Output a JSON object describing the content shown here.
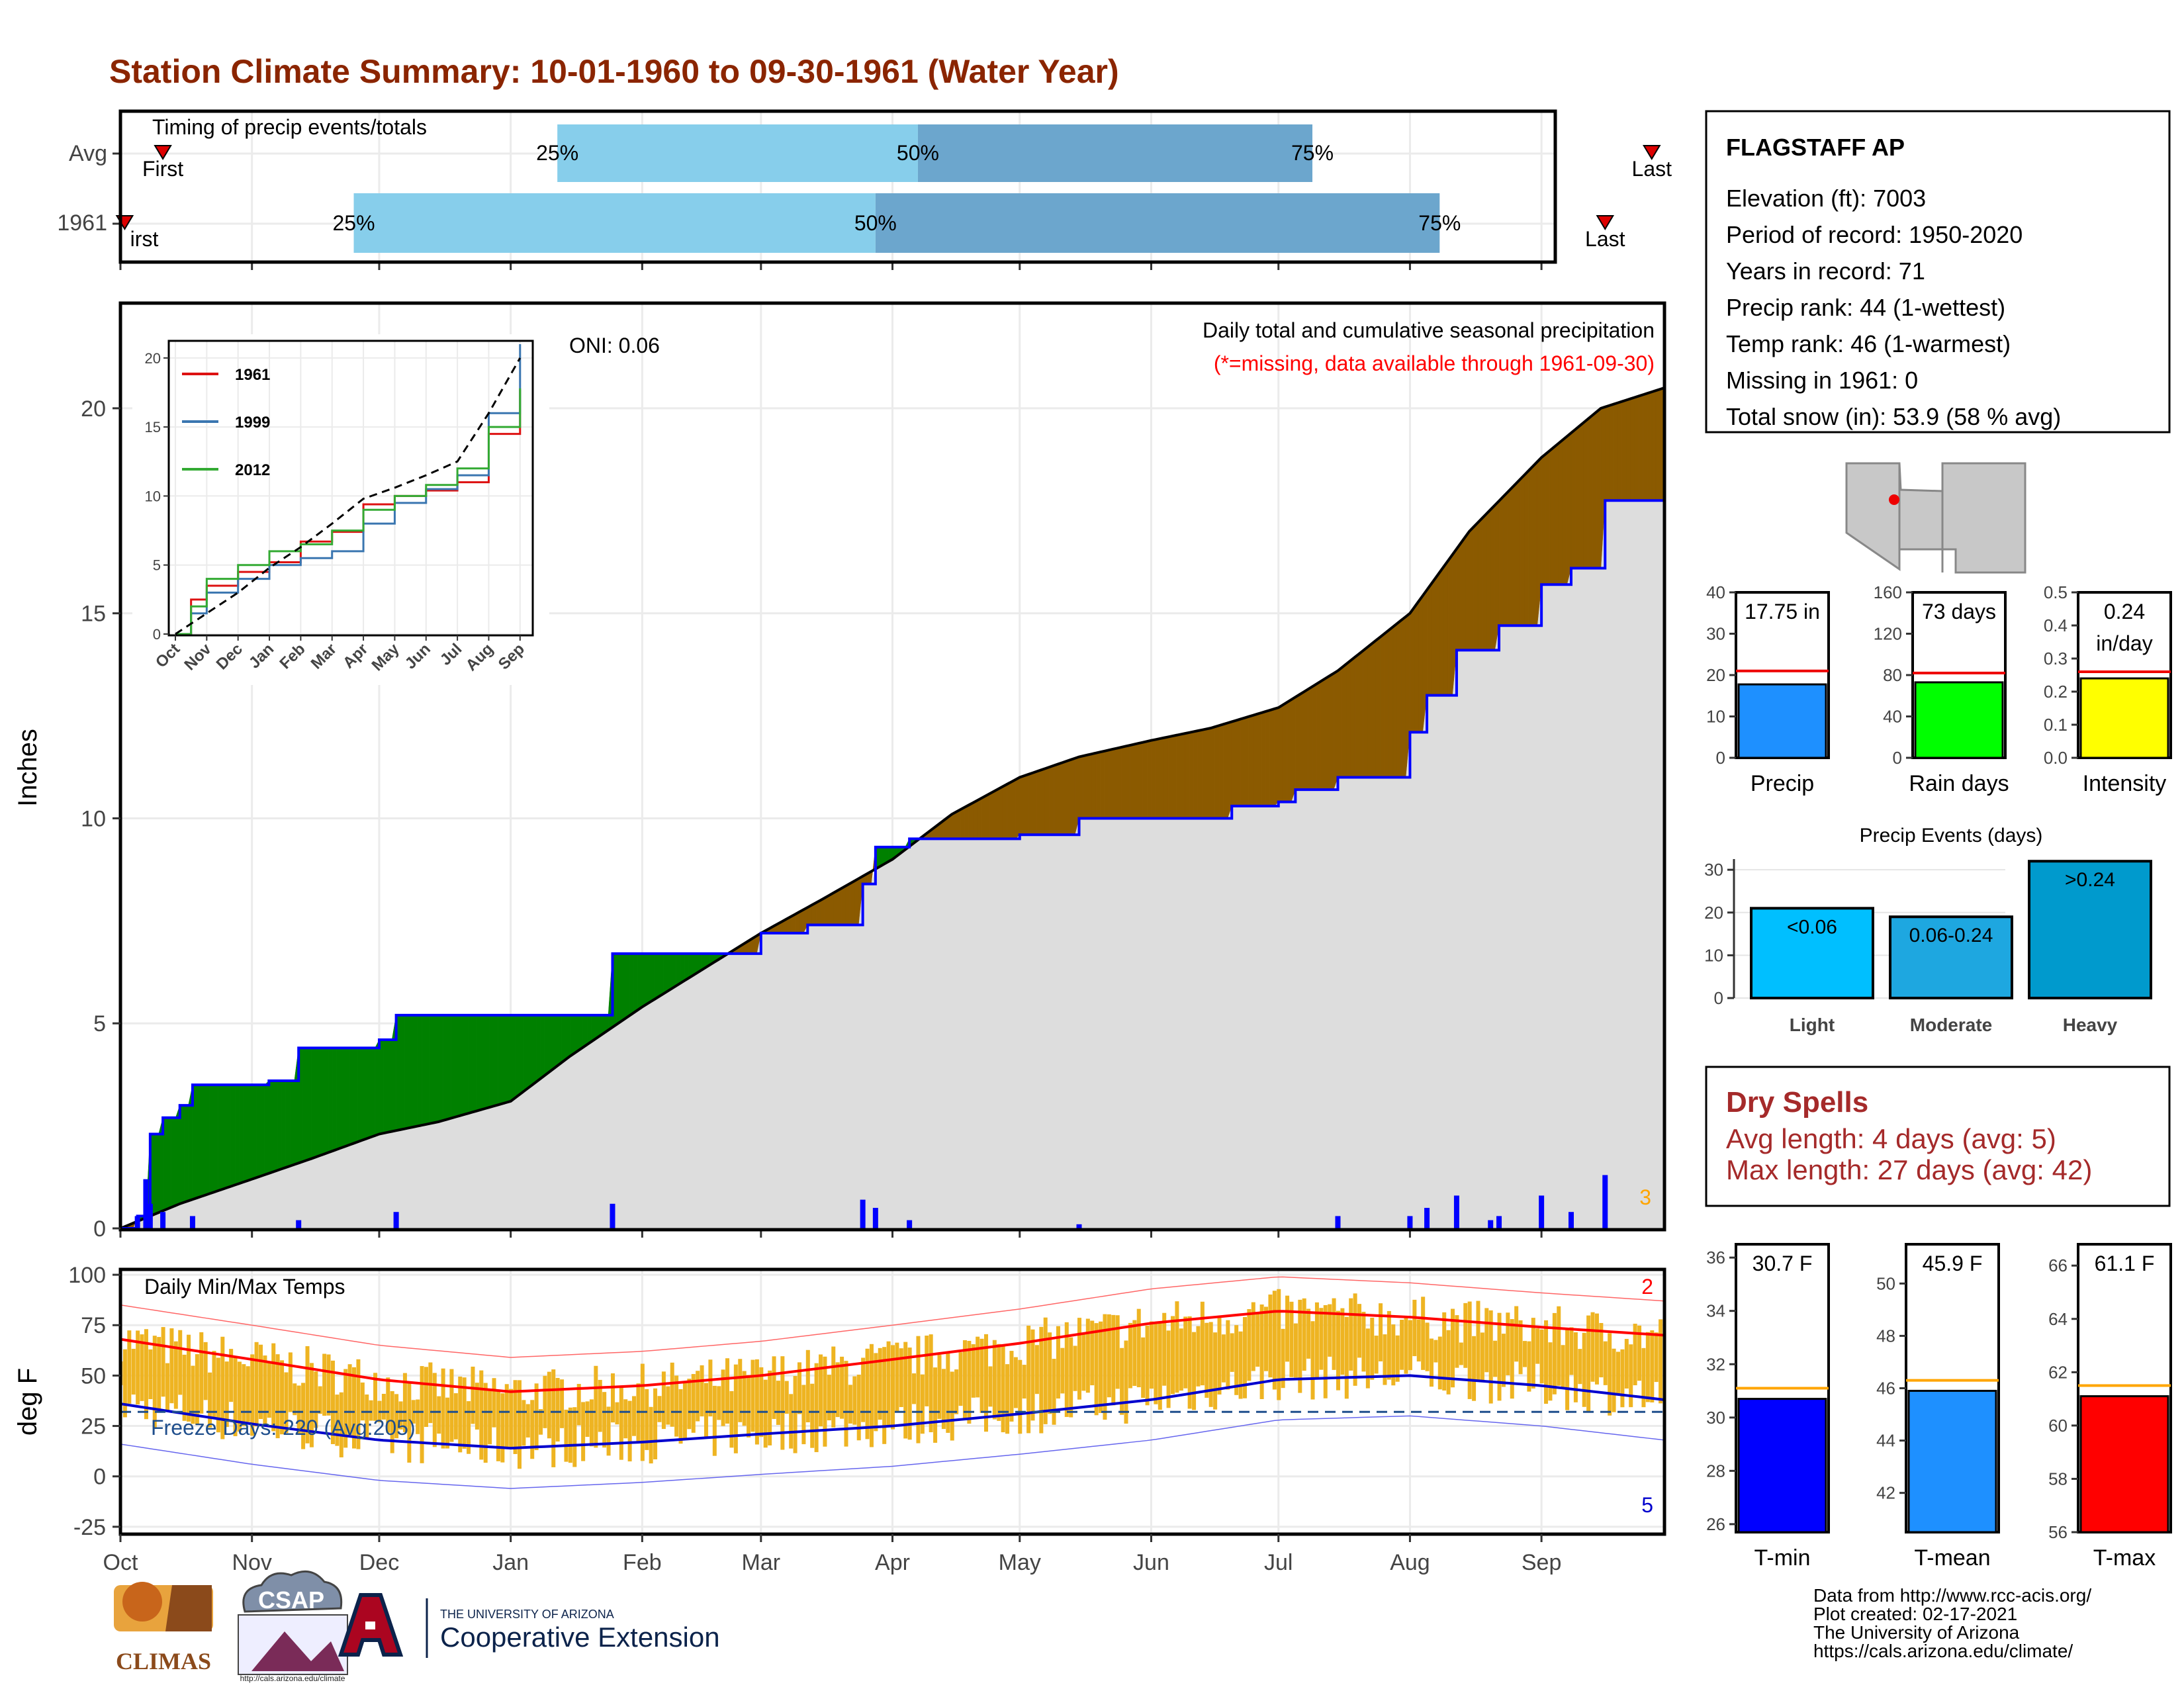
{
  "title": "Station Climate Summary: 10-01-1960 to 09-30-1961 (Water Year)",
  "timing": {
    "heading": "Timing of precip events/totals",
    "rows": [
      {
        "label": "Avg",
        "first_label": "First",
        "last_label": "Last",
        "first_date": "1960-10-11",
        "p25_date": "1961-01-12",
        "p50_date": "1961-04-07",
        "p75_date": "1961-07-09",
        "last_date": "1961-09-27"
      },
      {
        "label": "1961",
        "first_label": "irst",
        "last_label": "Last",
        "first_date": "1960-10-02",
        "p25_date": "1960-11-25",
        "p50_date": "1961-03-28",
        "p75_date": "1961-08-08",
        "last_date": "1961-09-16"
      }
    ],
    "pct_labels": [
      "25%",
      "50%",
      "75%"
    ],
    "colors": {
      "light": "#87CEEB",
      "dark": "#6CA6CD",
      "marker": "#DD0000"
    }
  },
  "precip_panel": {
    "ylabel": "Inches",
    "oni": "ONI: 0.06",
    "title": "Daily total and cumulative seasonal precipitation",
    "subtitle": "(*=missing, data available through 1961-09-30)",
    "corner_count": "3",
    "colors": {
      "deficit": "#008000",
      "surplus": "#8B5A00",
      "normal_fill": "#DDDDDD",
      "obs_line": "#0000FF",
      "avg_line": "#000000",
      "subtitle": "#FF0000",
      "count": "#FFA500"
    }
  },
  "inset": {
    "xticks": [
      "Oct",
      "Nov",
      "Dec",
      "Jan",
      "Feb",
      "Mar",
      "Apr",
      "May",
      "Jun",
      "Jul",
      "Aug",
      "Sep"
    ],
    "yticks": [
      "0",
      "5",
      "10",
      "15",
      "20"
    ],
    "legend": [
      {
        "name": "1961",
        "color": "#DD1111"
      },
      {
        "name": "1999",
        "color": "#3A76B0"
      },
      {
        "name": "2012",
        "color": "#33AA33"
      }
    ]
  },
  "temp_panel": {
    "ylabel": "deg F",
    "heading": "Daily Min/Max Temps",
    "freeze": "Freeze Days: 220 (Avg:205)",
    "count_hi": "2",
    "count_lo": "5",
    "colors": {
      "bars": "#EEB422",
      "max_norm": "#FF0000",
      "min_norm": "#0000CD",
      "freeze_line": "#1F4E8C"
    }
  },
  "station": {
    "name": "FLAGSTAFF AP",
    "lines": [
      "Elevation (ft): 7003",
      "Period of record: 1950-2020",
      "Years in record: 71",
      "Precip rank: 44 (1-wettest)",
      "Temp rank: 46 (1-warmest)",
      "Missing in 1961: 0",
      "Total snow (in): 53.9 (58 % avg)"
    ]
  },
  "precip_summary": [
    {
      "label": "Precip",
      "value_text": "17.75 in",
      "yticks": [
        "0",
        "10",
        "20",
        "30",
        "40"
      ],
      "color": "#1E90FF"
    },
    {
      "label": "Rain days",
      "value_text": "73 days",
      "yticks": [
        "0",
        "40",
        "80",
        "120",
        "160"
      ],
      "color": "#00FF00"
    },
    {
      "label": "Intensity",
      "value_text": "0.24 in/day",
      "yticks": [
        "0.0",
        "0.1",
        "0.2",
        "0.3",
        "0.4",
        "0.5"
      ],
      "color": "#FFFF00"
    }
  ],
  "events": {
    "title": "Precip Events (days)",
    "yticks": [
      "0",
      "10",
      "20",
      "30"
    ],
    "bars": [
      {
        "label": "Light",
        "bar_text": "<0.06",
        "color": "#00BFFF"
      },
      {
        "label": "Moderate",
        "bar_text": "0.06-0.24",
        "color": "#1EA7E0"
      },
      {
        "label": "Heavy",
        "bar_text": ">0.24",
        "color": "#009ACD"
      }
    ]
  },
  "dry_spells": {
    "title": "Dry Spells",
    "lines": [
      "Avg length: 4 days (avg: 5)",
      "Max length: 27 days (avg: 42)"
    ],
    "color": "#A52A2A"
  },
  "temp_summary": [
    {
      "label": "T-min",
      "value_text": "30.7 F",
      "yticks": [
        "26",
        "28",
        "30",
        "32",
        "34",
        "36"
      ],
      "color": "#0000FF"
    },
    {
      "label": "T-mean",
      "value_text": "45.9 F",
      "yticks": [
        "42",
        "44",
        "46",
        "48",
        "50"
      ],
      "color": "#1E90FF"
    },
    {
      "label": "T-max",
      "value_text": "61.1 F",
      "yticks": [
        "56",
        "58",
        "60",
        "62",
        "64",
        "66"
      ],
      "color": "#FF0000"
    }
  ],
  "credits": [
    "Data from http://www.rcc-acis.org/",
    "Plot created: 02-17-2021",
    "The University of Arizona",
    "https://cals.arizona.edu/climate/"
  ],
  "logos": {
    "climas": "CLIMAS",
    "csap": "CSAP",
    "csap_url": "http://cals.arizona.edu/climate",
    "ua_small": "THE UNIVERSITY OF ARIZONA",
    "ua_big": "Cooperative Extension"
  },
  "chart_data": {
    "type": "area",
    "x_axis": {
      "label": "",
      "ticks": [
        "Oct",
        "Nov",
        "Dec",
        "Jan",
        "Feb",
        "Mar",
        "Apr",
        "May",
        "Jun",
        "Jul",
        "Aug",
        "Sep"
      ],
      "range": [
        "1960-10-01",
        "1961-09-30"
      ]
    },
    "precip": {
      "ylabel": "Inches",
      "ylim": [
        0,
        22.5
      ],
      "yticks": [
        0,
        5,
        10,
        15,
        20
      ],
      "cumulative_normal": [
        [
          "1960-10-01",
          0.0
        ],
        [
          "1960-10-15",
          0.6
        ],
        [
          "1960-11-01",
          1.2
        ],
        [
          "1960-11-15",
          1.7
        ],
        [
          "1960-12-01",
          2.3
        ],
        [
          "1960-12-15",
          2.6
        ],
        [
          "1961-01-01",
          3.1
        ],
        [
          "1961-01-15",
          4.2
        ],
        [
          "1961-02-01",
          5.4
        ],
        [
          "1961-02-15",
          6.3
        ],
        [
          "1961-03-01",
          7.2
        ],
        [
          "1961-03-15",
          8.0
        ],
        [
          "1961-04-01",
          9.0
        ],
        [
          "1961-04-15",
          10.1
        ],
        [
          "1961-05-01",
          11.0
        ],
        [
          "1961-05-15",
          11.5
        ],
        [
          "1961-06-01",
          11.9
        ],
        [
          "1961-06-15",
          12.2
        ],
        [
          "1961-07-01",
          12.7
        ],
        [
          "1961-07-15",
          13.6
        ],
        [
          "1961-08-01",
          15.0
        ],
        [
          "1961-08-15",
          17.0
        ],
        [
          "1961-09-01",
          18.8
        ],
        [
          "1961-09-15",
          20.0
        ],
        [
          "1961-09-30",
          20.5
        ]
      ],
      "cumulative_observed": [
        [
          "1960-10-01",
          0.0
        ],
        [
          "1960-10-05",
          0.3
        ],
        [
          "1960-10-08",
          2.3
        ],
        [
          "1960-10-11",
          2.7
        ],
        [
          "1960-10-15",
          3.0
        ],
        [
          "1960-10-18",
          3.5
        ],
        [
          "1960-11-05",
          3.6
        ],
        [
          "1960-11-12",
          4.4
        ],
        [
          "1960-12-01",
          4.6
        ],
        [
          "1960-12-05",
          5.2
        ],
        [
          "1960-12-20",
          5.2
        ],
        [
          "1961-01-15",
          5.2
        ],
        [
          "1961-01-25",
          6.7
        ],
        [
          "1961-02-20",
          6.7
        ],
        [
          "1961-03-01",
          7.2
        ],
        [
          "1961-03-12",
          7.4
        ],
        [
          "1961-03-25",
          8.4
        ],
        [
          "1961-03-28",
          9.3
        ],
        [
          "1961-04-05",
          9.5
        ],
        [
          "1961-05-01",
          9.6
        ],
        [
          "1961-05-15",
          10.0
        ],
        [
          "1961-06-20",
          10.3
        ],
        [
          "1961-07-01",
          10.4
        ],
        [
          "1961-07-05",
          10.7
        ],
        [
          "1961-07-15",
          11.0
        ],
        [
          "1961-08-01",
          12.1
        ],
        [
          "1961-08-05",
          13.0
        ],
        [
          "1961-08-12",
          14.1
        ],
        [
          "1961-08-22",
          14.7
        ],
        [
          "1961-09-01",
          15.7
        ],
        [
          "1961-09-08",
          16.1
        ],
        [
          "1961-09-16",
          17.75
        ],
        [
          "1961-09-30",
          17.75
        ]
      ],
      "daily_events": [
        [
          "1960-10-05",
          0.3
        ],
        [
          "1960-10-07",
          1.2
        ],
        [
          "1960-10-08",
          0.6
        ],
        [
          "1960-10-11",
          0.4
        ],
        [
          "1960-10-18",
          0.3
        ],
        [
          "1960-11-12",
          0.2
        ],
        [
          "1960-12-05",
          0.4
        ],
        [
          "1961-01-25",
          0.6
        ],
        [
          "1961-03-25",
          0.7
        ],
        [
          "1961-03-28",
          0.5
        ],
        [
          "1961-04-05",
          0.2
        ],
        [
          "1961-05-15",
          0.1
        ],
        [
          "1961-07-15",
          0.3
        ],
        [
          "1961-08-01",
          0.3
        ],
        [
          "1961-08-05",
          0.5
        ],
        [
          "1961-08-12",
          0.8
        ],
        [
          "1961-08-20",
          0.2
        ],
        [
          "1961-08-22",
          0.3
        ],
        [
          "1961-09-01",
          0.8
        ],
        [
          "1961-09-08",
          0.4
        ],
        [
          "1961-09-16",
          1.3
        ]
      ]
    },
    "inset_cumulative": {
      "ylim": [
        0,
        21
      ],
      "series": [
        {
          "name": "1961",
          "values": [
            [
              0,
              0
            ],
            [
              0.5,
              2.5
            ],
            [
              1,
              3.5
            ],
            [
              2,
              4.5
            ],
            [
              3,
              5.2
            ],
            [
              4,
              6.7
            ],
            [
              5,
              7.4
            ],
            [
              6,
              9.4
            ],
            [
              7,
              10.0
            ],
            [
              8,
              10.4
            ],
            [
              9,
              11.0
            ],
            [
              10,
              14.5
            ],
            [
              11,
              17.7
            ]
          ]
        },
        {
          "name": "1999",
          "values": [
            [
              0,
              0
            ],
            [
              0.5,
              1.5
            ],
            [
              1,
              3.0
            ],
            [
              2,
              4.0
            ],
            [
              3,
              5.0
            ],
            [
              4,
              5.5
            ],
            [
              5,
              6.0
            ],
            [
              6,
              8.0
            ],
            [
              7,
              9.5
            ],
            [
              8,
              10.5
            ],
            [
              9,
              11.5
            ],
            [
              10,
              16.0
            ],
            [
              11,
              21.0
            ]
          ]
        },
        {
          "name": "2012",
          "values": [
            [
              0,
              0
            ],
            [
              0.5,
              2.0
            ],
            [
              1,
              4.0
            ],
            [
              2,
              5.0
            ],
            [
              3,
              6.0
            ],
            [
              4,
              6.5
            ],
            [
              5,
              7.5
            ],
            [
              6,
              9.0
            ],
            [
              7,
              10.0
            ],
            [
              8,
              10.8
            ],
            [
              9,
              12.0
            ],
            [
              10,
              15.0
            ],
            [
              11,
              17.8
            ]
          ]
        },
        {
          "name": "avg",
          "values": [
            [
              0,
              0
            ],
            [
              1,
              1.5
            ],
            [
              2,
              3.0
            ],
            [
              3,
              4.8
            ],
            [
              4,
              6.3
            ],
            [
              5,
              8.0
            ],
            [
              6,
              9.8
            ],
            [
              7,
              10.6
            ],
            [
              8,
              11.5
            ],
            [
              9,
              12.5
            ],
            [
              10,
              16.0
            ],
            [
              11,
              20.0
            ]
          ]
        }
      ]
    },
    "temps": {
      "ylabel": "deg F",
      "ylim": [
        -28,
        102
      ],
      "yticks": [
        -25,
        0,
        25,
        50,
        75,
        100
      ],
      "freeze_line": 32,
      "normal_max": [
        [
          "1960-10-01",
          68
        ],
        [
          "1960-11-01",
          58
        ],
        [
          "1960-12-01",
          48
        ],
        [
          "1961-01-01",
          42
        ],
        [
          "1961-02-01",
          45
        ],
        [
          "1961-03-01",
          50
        ],
        [
          "1961-04-01",
          58
        ],
        [
          "1961-05-01",
          66
        ],
        [
          "1961-06-01",
          76
        ],
        [
          "1961-07-01",
          82
        ],
        [
          "1961-08-01",
          79
        ],
        [
          "1961-09-01",
          74
        ],
        [
          "1961-09-30",
          70
        ]
      ],
      "normal_min": [
        [
          "1960-10-01",
          36
        ],
        [
          "1960-11-01",
          26
        ],
        [
          "1960-12-01",
          18
        ],
        [
          "1961-01-01",
          14
        ],
        [
          "1961-02-01",
          17
        ],
        [
          "1961-03-01",
          21
        ],
        [
          "1961-04-01",
          25
        ],
        [
          "1961-05-01",
          31
        ],
        [
          "1961-06-01",
          38
        ],
        [
          "1961-07-01",
          48
        ],
        [
          "1961-08-01",
          50
        ],
        [
          "1961-09-01",
          45
        ],
        [
          "1961-09-30",
          38
        ]
      ]
    }
  }
}
